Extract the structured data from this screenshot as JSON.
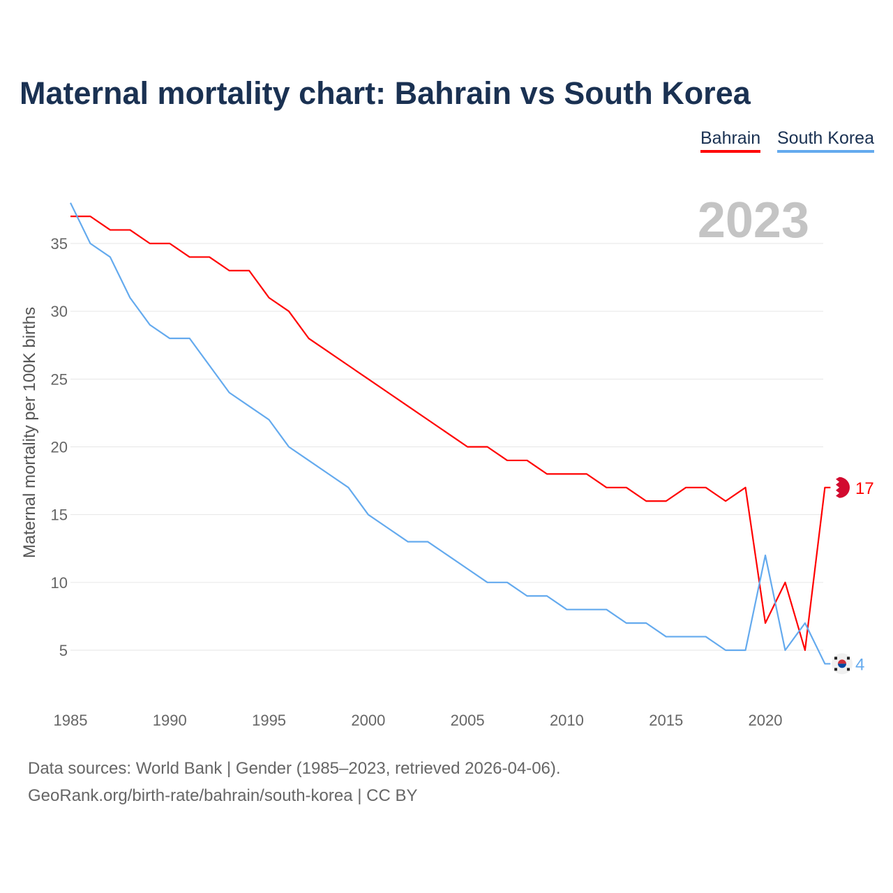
{
  "title": "Maternal mortality chart: Bahrain vs South Korea",
  "legend": [
    "Bahrain",
    "South Korea"
  ],
  "year_label": "2023",
  "footer": {
    "line1": "Data sources: World Bank | Gender (1985–2023, retrieved 2026-04-06).",
    "line2": "GeoRank.org/birth-rate/bahrain/south-korea | CC BY"
  },
  "chart_data": {
    "type": "line",
    "title": "Maternal mortality chart: Bahrain vs South Korea",
    "xlabel": "",
    "ylabel": "Maternal mortality per 100K births",
    "xlim": [
      1985,
      2023
    ],
    "ylim": [
      1.5,
      38
    ],
    "xticks": [
      1985,
      1990,
      1995,
      2000,
      2005,
      2010,
      2015,
      2020
    ],
    "yticks": [
      5,
      10,
      15,
      20,
      25,
      30,
      35
    ],
    "grid": true,
    "legend_position": "top-right",
    "x": [
      1985,
      1986,
      1987,
      1988,
      1989,
      1990,
      1991,
      1992,
      1993,
      1994,
      1995,
      1996,
      1997,
      1998,
      1999,
      2000,
      2001,
      2002,
      2003,
      2004,
      2005,
      2006,
      2007,
      2008,
      2009,
      2010,
      2011,
      2012,
      2013,
      2014,
      2015,
      2016,
      2017,
      2018,
      2019,
      2020,
      2021,
      2022,
      2023
    ],
    "series": [
      {
        "name": "Bahrain",
        "color": "#ff0000",
        "end_label": "17",
        "values": [
          37,
          37,
          36,
          36,
          35,
          35,
          34,
          34,
          33,
          33,
          31,
          30,
          28,
          27,
          26,
          25,
          24,
          23,
          22,
          21,
          20,
          20,
          19,
          19,
          18,
          18,
          18,
          17,
          17,
          16,
          16,
          17,
          17,
          16,
          17,
          7,
          10,
          5,
          17
        ]
      },
      {
        "name": "South Korea",
        "color": "#64aaee",
        "end_label": "4",
        "values": [
          38,
          35,
          34,
          31,
          29,
          28,
          28,
          26,
          24,
          23,
          22,
          20,
          19,
          18,
          17,
          15,
          14,
          13,
          13,
          12,
          11,
          10,
          10,
          9,
          9,
          8,
          8,
          8,
          7,
          7,
          6,
          6,
          6,
          5,
          5,
          12,
          5,
          7,
          4
        ]
      }
    ]
  }
}
